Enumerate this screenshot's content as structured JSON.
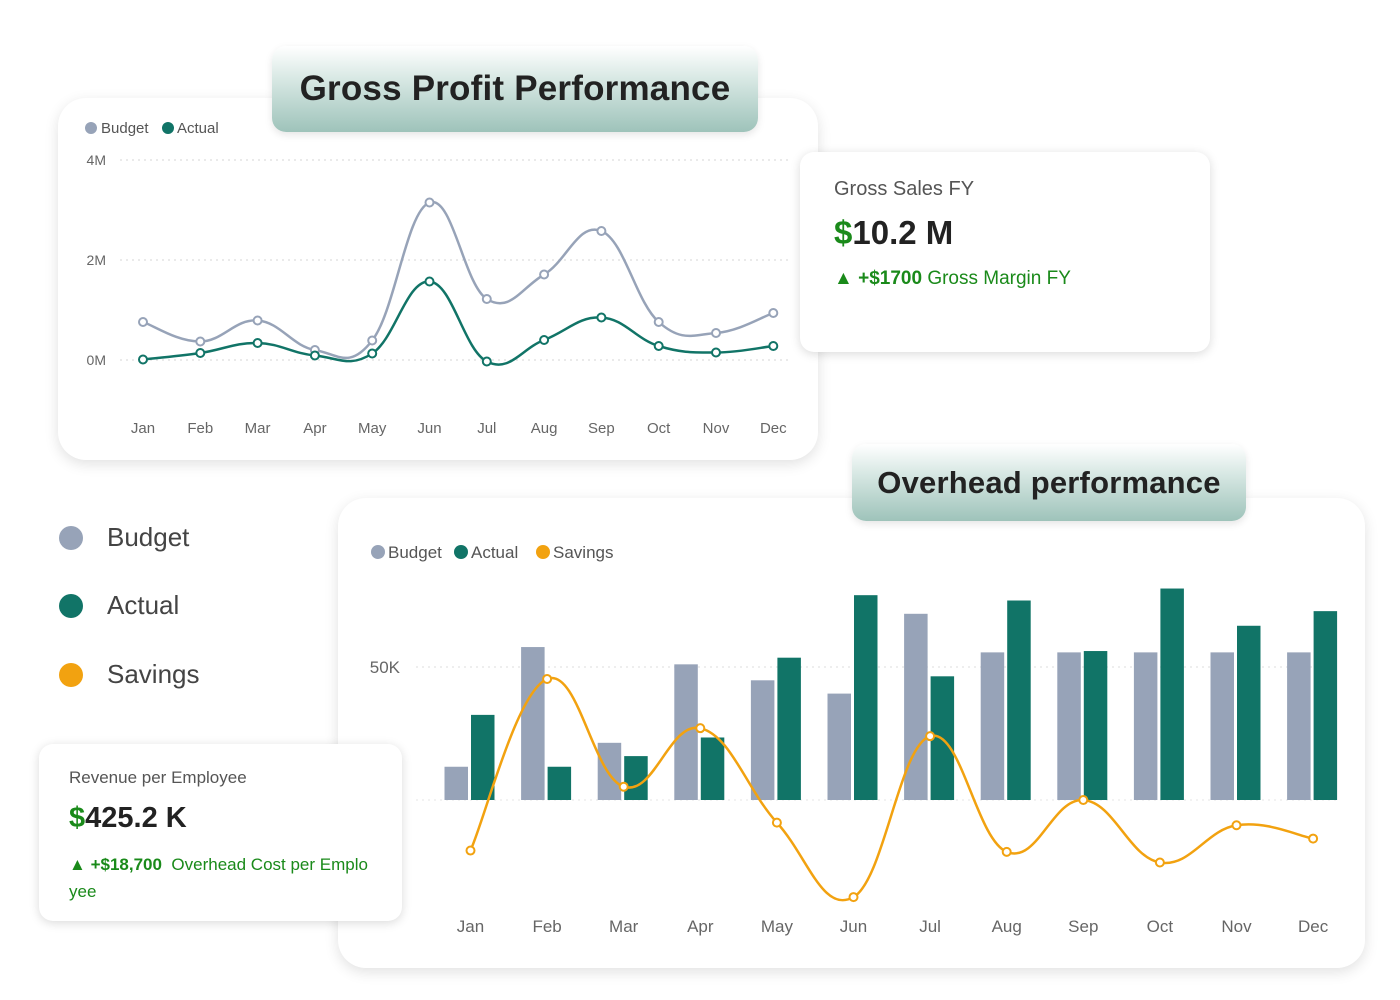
{
  "colors": {
    "budget": "#97a3b8",
    "actual": "#117467",
    "savings": "#f2a210",
    "positive": "#1a8a1a"
  },
  "gross_profit": {
    "title": "Gross Profit Performance",
    "legend": [
      "Budget",
      "Actual"
    ]
  },
  "gross_sales": {
    "label": "Gross Sales FY",
    "value_symbol": "$",
    "value_rest": "10.2 M",
    "delta_arrow": "▲",
    "delta_value": "+$1700",
    "delta_text": "Gross Margin FY"
  },
  "overhead": {
    "title": "Overhead performance",
    "legend": [
      "Budget",
      "Actual",
      "Savings"
    ]
  },
  "side_legend": [
    {
      "label": "Budget",
      "color": "#97a3b8"
    },
    {
      "label": "Actual",
      "color": "#117467"
    },
    {
      "label": "Savings",
      "color": "#f2a210"
    }
  ],
  "revenue_per_employee": {
    "label": "Revenue per Employee",
    "value_symbol": "$",
    "value_rest": "425.2 K",
    "delta_arrow": "▲",
    "delta_value": "+$18,700",
    "delta_text_line1": "Overhead Cost per Emplo",
    "delta_text_line2": "yee"
  },
  "chart_data": [
    {
      "type": "line",
      "title": "Gross Profit Performance",
      "categories": [
        "Jan",
        "Feb",
        "Mar",
        "Apr",
        "May",
        "Jun",
        "Jul",
        "Aug",
        "Sep",
        "Oct",
        "Nov",
        "Dec"
      ],
      "y_ticks": [
        "4M",
        "2M",
        "0M"
      ],
      "ylim": [
        0,
        4000000
      ],
      "grid": true,
      "legend_position": "top-left",
      "series": [
        {
          "name": "Budget",
          "values": [
            760000,
            370000,
            790000,
            200000,
            390000,
            3150000,
            1220000,
            1710000,
            2580000,
            760000,
            540000,
            940000
          ]
        },
        {
          "name": "Actual",
          "values": [
            10000,
            140000,
            340000,
            90000,
            130000,
            1570000,
            -30000,
            400000,
            850000,
            280000,
            150000,
            280000
          ]
        }
      ]
    },
    {
      "type": "bar",
      "title": "Overhead performance",
      "categories": [
        "Jan",
        "Feb",
        "Mar",
        "Apr",
        "May",
        "Jun",
        "Jul",
        "Aug",
        "Sep",
        "Oct",
        "Nov",
        "Dec"
      ],
      "y_ticks": [
        "50K"
      ],
      "ylim": [
        -38000,
        85000
      ],
      "grid": true,
      "legend_position": "top-left",
      "series": [
        {
          "name": "Budget",
          "type": "bar",
          "values": [
            12500,
            57500,
            21500,
            51000,
            45000,
            40000,
            70000,
            55500,
            55500,
            55500,
            55500,
            55500
          ]
        },
        {
          "name": "Actual",
          "type": "bar",
          "values": [
            32000,
            12500,
            16500,
            23500,
            53500,
            77000,
            46500,
            75000,
            56000,
            79500,
            65500,
            71000
          ]
        },
        {
          "name": "Savings",
          "type": "line",
          "values": [
            -19000,
            45500,
            5000,
            27000,
            -8500,
            -36500,
            24000,
            -19500,
            0,
            -23500,
            -9500,
            -14500
          ]
        }
      ]
    }
  ]
}
